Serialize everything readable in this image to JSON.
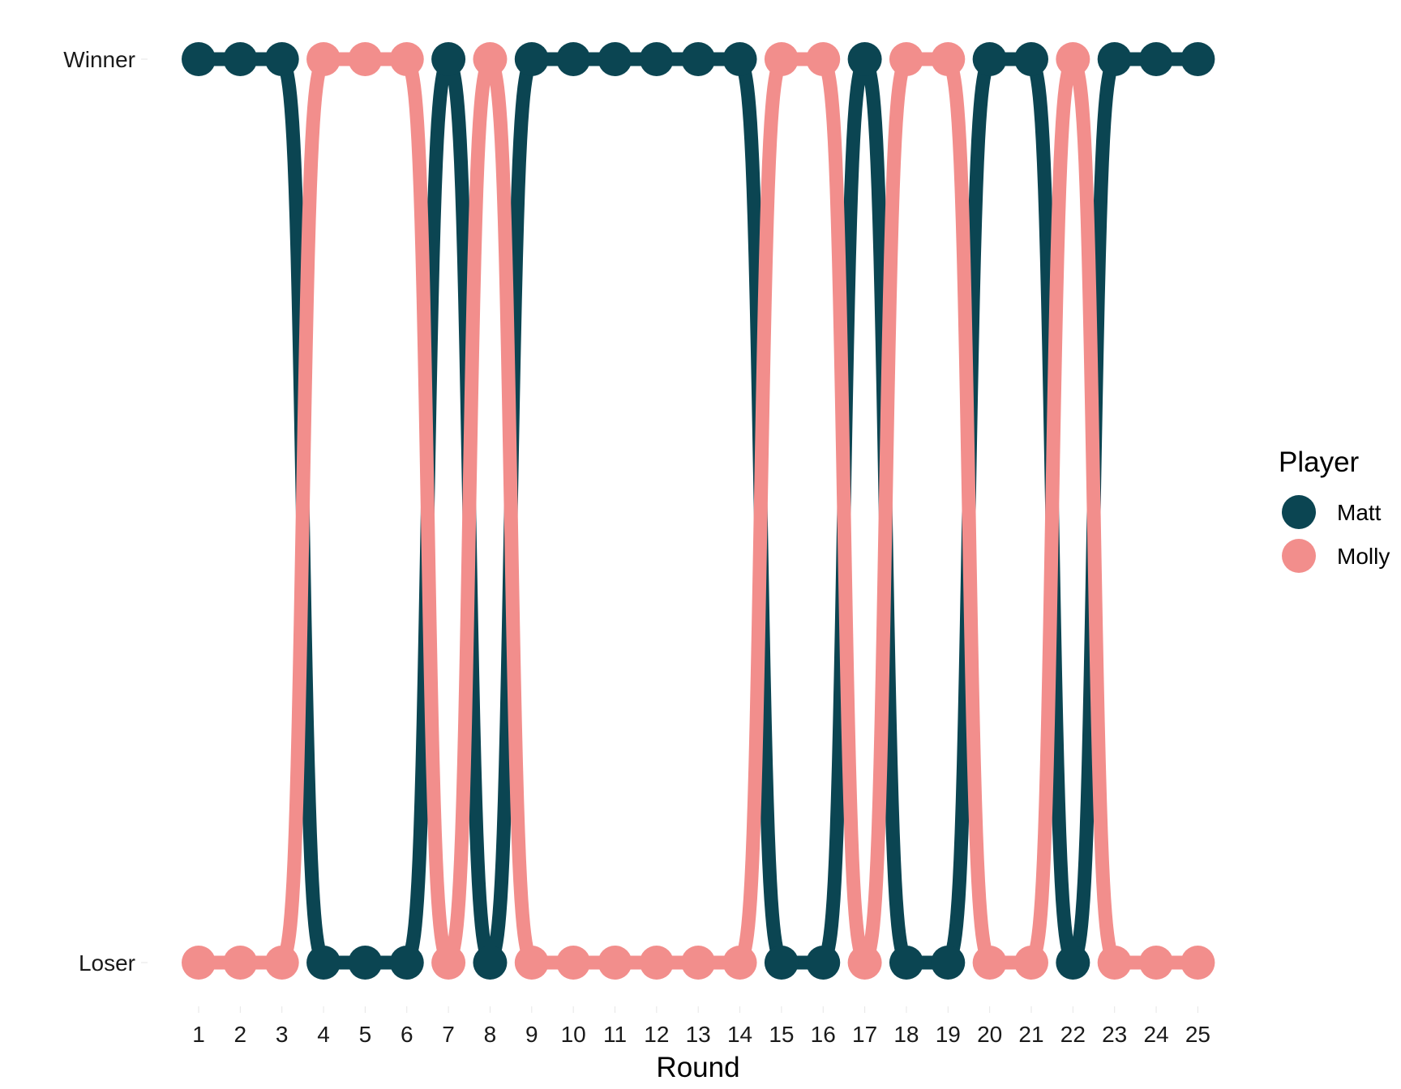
{
  "chart_data": {
    "type": "line",
    "xlabel": "Round",
    "ylabel": "",
    "x": [
      1,
      2,
      3,
      4,
      5,
      6,
      7,
      8,
      9,
      10,
      11,
      12,
      13,
      14,
      15,
      16,
      17,
      18,
      19,
      20,
      21,
      22,
      23,
      24,
      25
    ],
    "y_categories": [
      "Loser",
      "Winner"
    ],
    "series": [
      {
        "name": "Matt",
        "color": "#0b4552",
        "values": [
          "Winner",
          "Winner",
          "Winner",
          "Loser",
          "Loser",
          "Loser",
          "Winner",
          "Loser",
          "Winner",
          "Winner",
          "Winner",
          "Winner",
          "Winner",
          "Winner",
          "Loser",
          "Loser",
          "Winner",
          "Loser",
          "Loser",
          "Winner",
          "Winner",
          "Loser",
          "Winner",
          "Winner",
          "Winner"
        ]
      },
      {
        "name": "Molly",
        "color": "#f28e8c",
        "values": [
          "Loser",
          "Loser",
          "Loser",
          "Winner",
          "Winner",
          "Winner",
          "Loser",
          "Winner",
          "Loser",
          "Loser",
          "Loser",
          "Loser",
          "Loser",
          "Loser",
          "Winner",
          "Winner",
          "Loser",
          "Winner",
          "Winner",
          "Loser",
          "Loser",
          "Winner",
          "Loser",
          "Loser",
          "Loser"
        ]
      }
    ],
    "legend": {
      "title": "Player",
      "position": "right"
    },
    "grid": false
  }
}
